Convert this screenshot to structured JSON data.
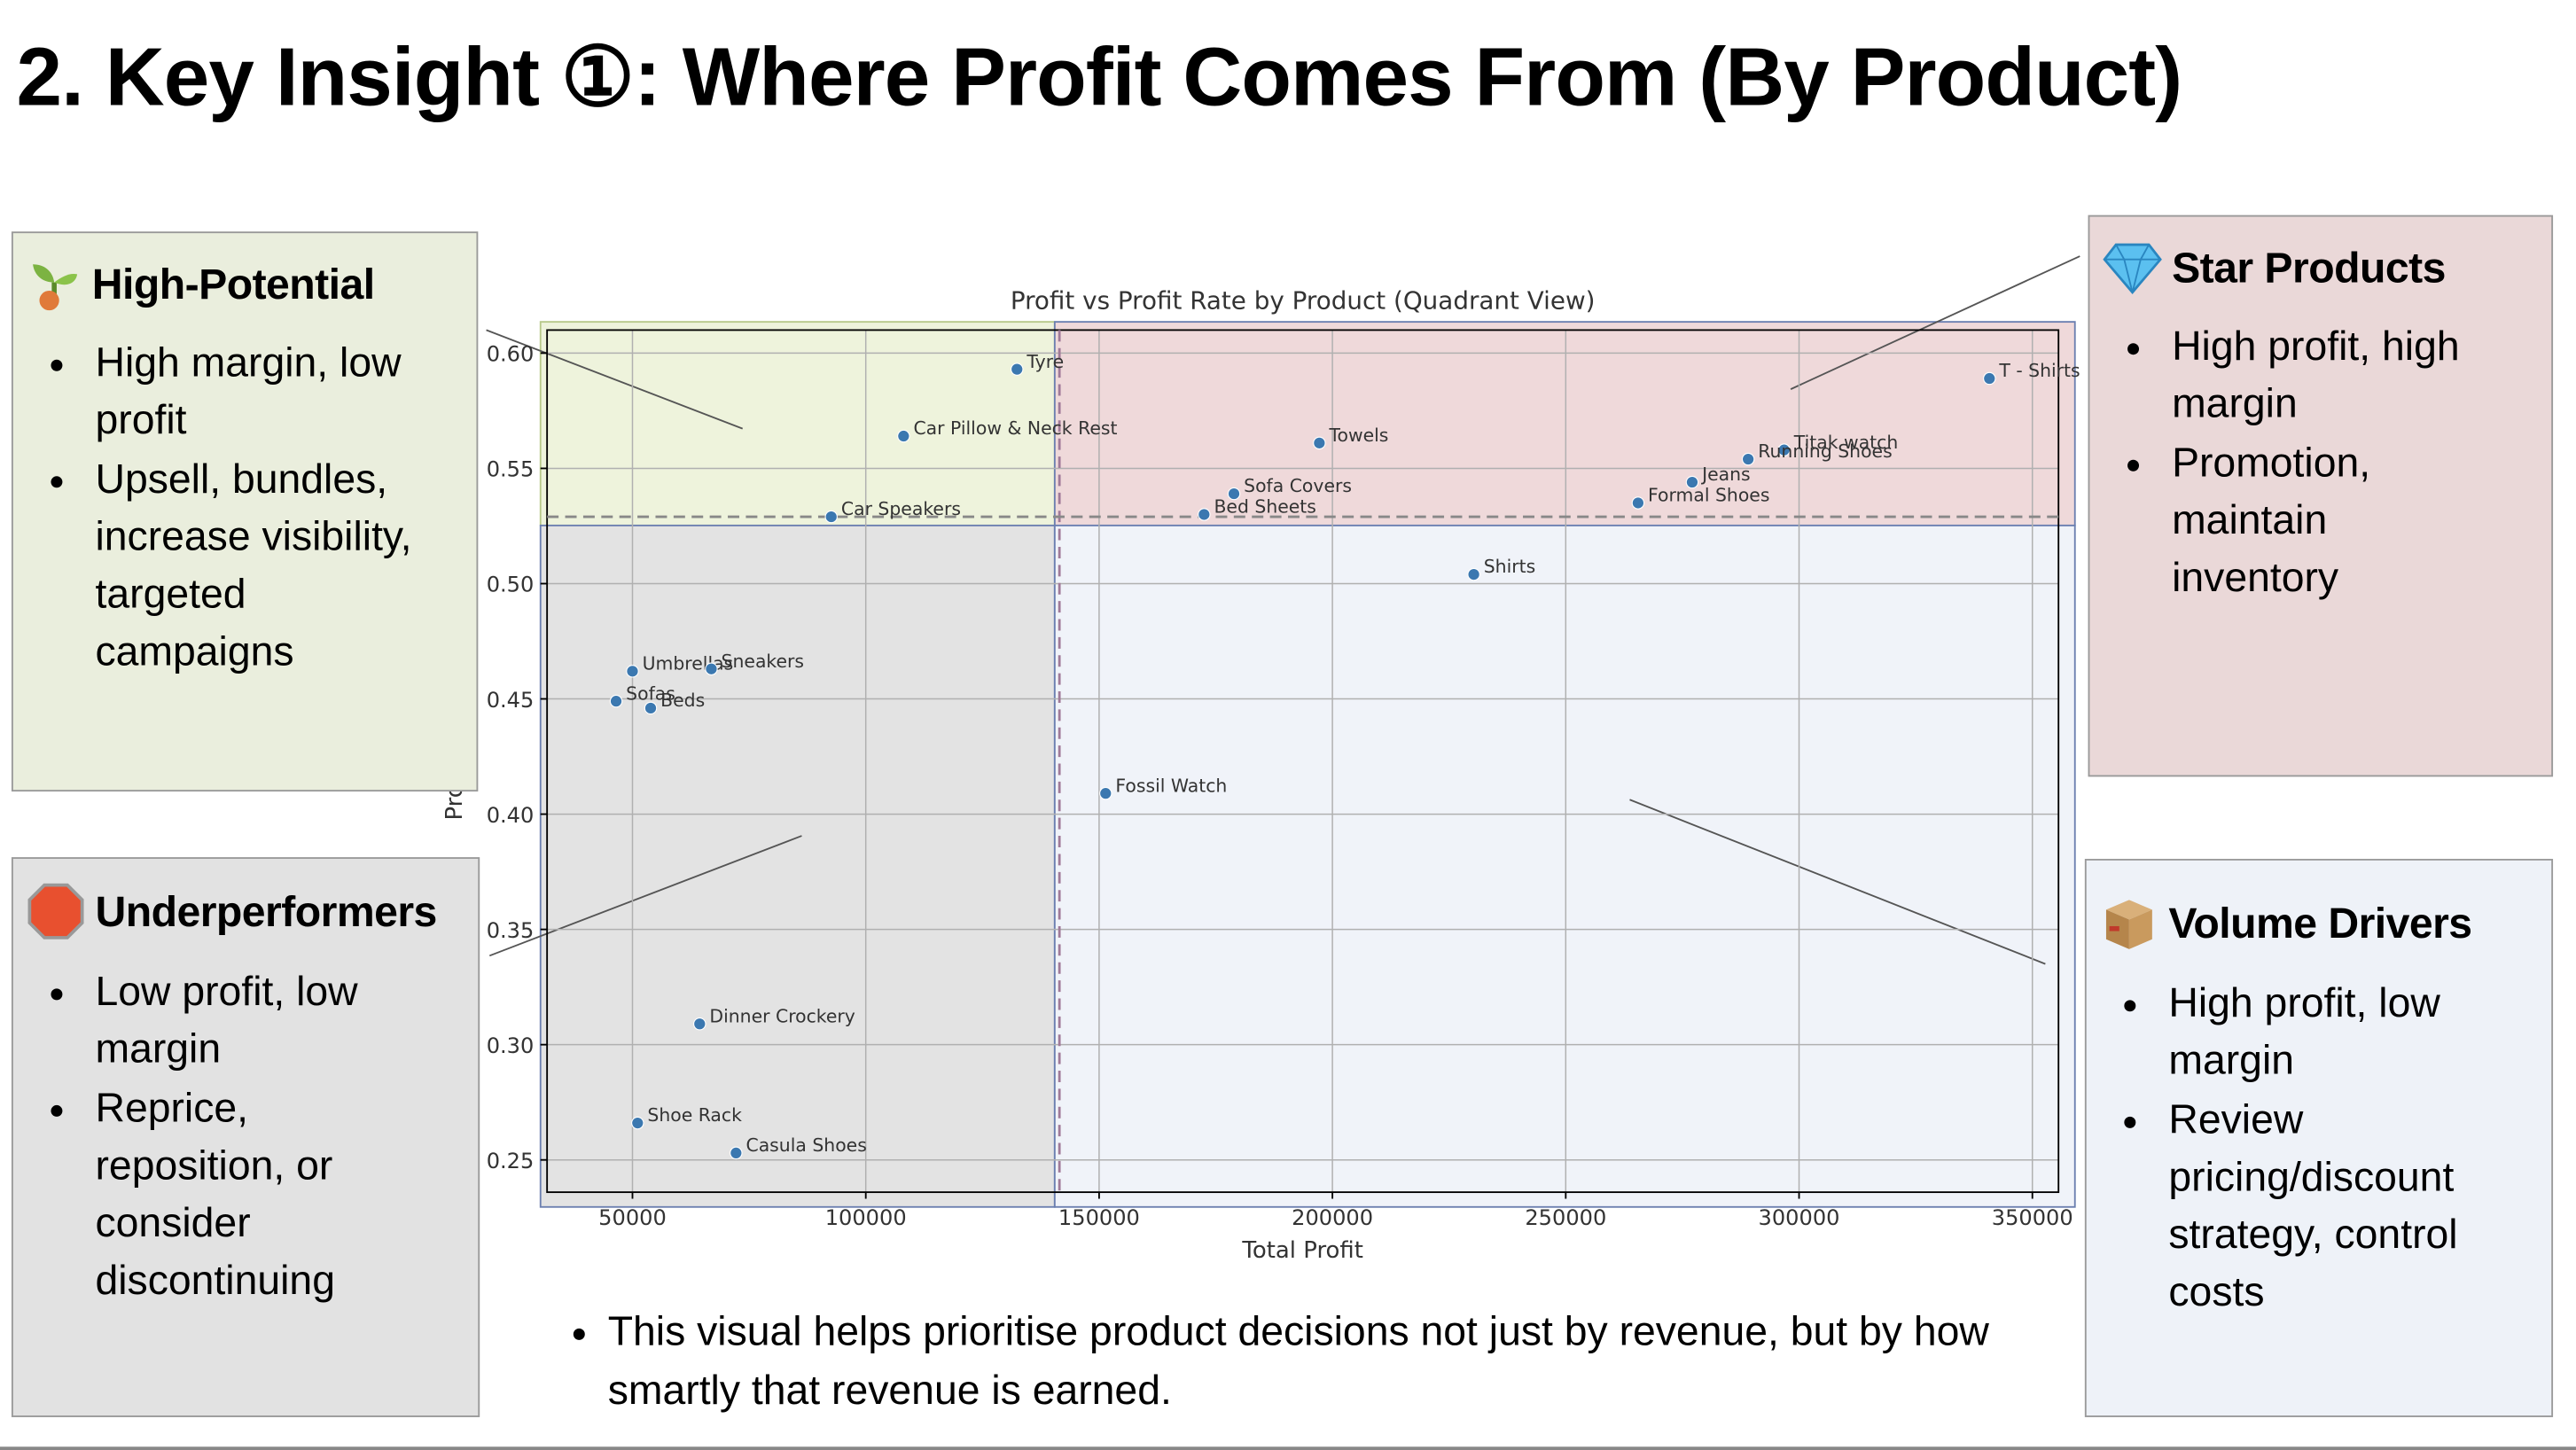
{
  "title": "2. Key Insight ①: Where Profit Comes From (By Product)",
  "quadrants": [
    {
      "heading": "High-Potential",
      "bullets": [
        "High margin, low profit",
        "Upsell, bundles, increase visibility, targeted campaigns"
      ]
    },
    {
      "heading": "Underperformers",
      "bullets": [
        "Low profit, low margin",
        "Reprice, reposition, or consider discontinuing"
      ]
    },
    {
      "heading": "Star Products",
      "bullets": [
        "High profit, high margin",
        "Promotion, maintain inventory"
      ]
    },
    {
      "heading": "Volume Drivers",
      "bullets": [
        "High profit, low margin",
        "Review pricing/discount strategy, control costs"
      ]
    }
  ],
  "footnote": "This visual helps prioritise product decisions not just by revenue, but by how smartly that revenue is earned.",
  "chart_data": {
    "type": "scatter",
    "title": "Profit vs Profit Rate by Product (Quadrant View)",
    "x_label": "Total Profit",
    "y_label": "Profit Rate",
    "labels": [
      "Tyre",
      "Car Pillow & Neck Rest",
      "Car Speakers",
      "Towels",
      "Sofa Covers",
      "Bed Sheets",
      "T - Shirts",
      "Titak watch",
      "Running Shoes",
      "Jeans",
      "Formal Shoes",
      "Shirts",
      "Umbrellas",
      "Sneakers",
      "Sofas",
      "Beds",
      "Fossil Watch",
      "Dinner Crockery",
      "Shoe Rack",
      "Casula Shoes"
    ],
    "x": [
      132400,
      108100,
      92600,
      197200,
      178900,
      172500,
      340800,
      296800,
      289100,
      277100,
      265500,
      230300,
      50000,
      66900,
      46500,
      53900,
      151400,
      64400,
      51100,
      72200
    ],
    "values": [
      0.593,
      0.564,
      0.529,
      0.561,
      0.539,
      0.53,
      0.589,
      0.558,
      0.554,
      0.544,
      0.535,
      0.504,
      0.462,
      0.463,
      0.449,
      0.446,
      0.409,
      0.309,
      0.266,
      0.253
    ],
    "color": "#3b78b0",
    "x_threshold": 141500,
    "y_threshold": 0.529,
    "xlim": [
      31700,
      355600
    ],
    "ylim": [
      0.236,
      0.61
    ],
    "xticks": [
      50000,
      100000,
      150000,
      200000,
      250000,
      300000,
      350000
    ],
    "yticks": [
      0.25,
      {
        "value": 0.3,
        "label": "0.30"
      },
      0.35,
      {
        "value": 0.4,
        "label": "0.40"
      },
      0.45,
      {
        "value": 0.5,
        "label": "0.50"
      },
      0.55,
      {
        "value": 0.6,
        "label": "0.60"
      }
    ],
    "grid": true
  }
}
